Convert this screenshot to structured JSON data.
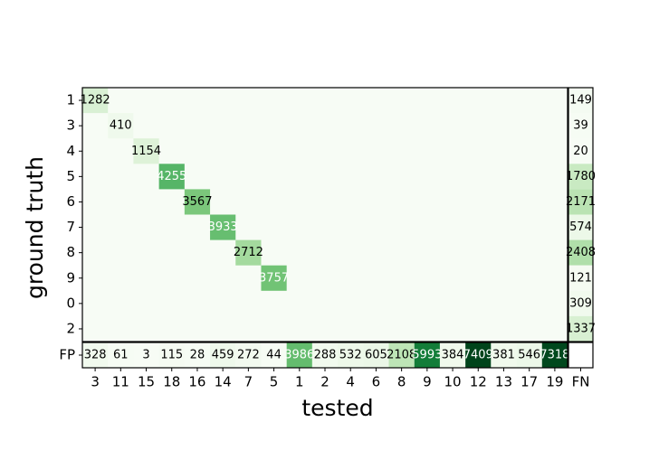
{
  "chart_data": {
    "type": "heatmap",
    "xlabel": "tested",
    "ylabel": "ground truth",
    "x": [
      "3",
      "11",
      "15",
      "18",
      "16",
      "14",
      "7",
      "5",
      "1",
      "2",
      "4",
      "6",
      "8",
      "9",
      "10",
      "12",
      "13",
      "17",
      "19"
    ],
    "y": [
      "1",
      "3",
      "4",
      "5",
      "6",
      "7",
      "8",
      "9",
      "0",
      "2"
    ],
    "values": [
      [
        1282,
        null,
        null,
        null,
        null,
        null,
        null,
        null,
        null,
        null,
        null,
        null,
        null,
        null,
        null,
        null,
        null,
        null,
        null
      ],
      [
        null,
        410,
        null,
        null,
        null,
        null,
        null,
        null,
        null,
        null,
        null,
        null,
        null,
        null,
        null,
        null,
        null,
        null,
        null
      ],
      [
        null,
        null,
        1154,
        null,
        null,
        null,
        null,
        null,
        null,
        null,
        null,
        null,
        null,
        null,
        null,
        null,
        null,
        null,
        null
      ],
      [
        null,
        null,
        null,
        4255,
        null,
        null,
        null,
        null,
        null,
        null,
        null,
        null,
        null,
        null,
        null,
        null,
        null,
        null,
        null
      ],
      [
        null,
        null,
        null,
        null,
        3567,
        null,
        null,
        null,
        null,
        null,
        null,
        null,
        null,
        null,
        null,
        null,
        null,
        null,
        null
      ],
      [
        null,
        null,
        null,
        null,
        null,
        3933,
        null,
        null,
        null,
        null,
        null,
        null,
        null,
        null,
        null,
        null,
        null,
        null,
        null
      ],
      [
        null,
        null,
        null,
        null,
        null,
        null,
        2712,
        null,
        null,
        null,
        null,
        null,
        null,
        null,
        null,
        null,
        null,
        null,
        null
      ],
      [
        null,
        null,
        null,
        null,
        null,
        null,
        null,
        3757,
        null,
        null,
        null,
        null,
        null,
        null,
        null,
        null,
        null,
        null,
        null
      ],
      [
        null,
        null,
        null,
        null,
        null,
        null,
        null,
        null,
        null,
        null,
        null,
        null,
        null,
        null,
        null,
        null,
        null,
        null,
        null
      ],
      [
        null,
        null,
        null,
        null,
        null,
        null,
        null,
        null,
        null,
        null,
        null,
        null,
        null,
        null,
        null,
        null,
        null,
        null,
        null
      ]
    ],
    "fn_label": "FN",
    "fn": [
      149,
      39,
      20,
      1780,
      2171,
      574,
      2408,
      121,
      309,
      1337
    ],
    "fp_label": "FP",
    "fp": [
      328,
      61,
      3,
      115,
      28,
      459,
      272,
      44,
      3986,
      288,
      532,
      605,
      2108,
      5993,
      384,
      7409,
      381,
      546,
      7318
    ],
    "colormap": [
      "#f7fcf5",
      "#e5f5e0",
      "#c7e9c0",
      "#a1d99b",
      "#74c476",
      "#41ab5d",
      "#238b45",
      "#006d2c",
      "#00441b"
    ]
  }
}
